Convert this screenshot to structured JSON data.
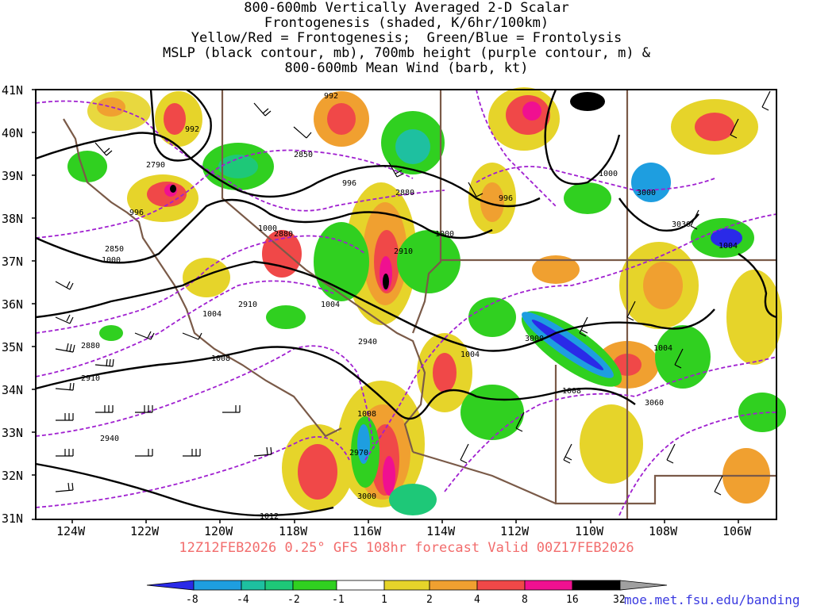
{
  "title": {
    "line1": "800-600mb Vertically Averaged 2-D Scalar",
    "line2": "Frontogenesis (shaded, K/6hr/100km)",
    "line3": "Yellow/Red = Frontogenesis;  Green/Blue = Frontolysis",
    "line4": "MSLP (black contour, mb), 700mb height (purple contour, m) &",
    "line5": "800-600mb Mean Wind (barb, kt)"
  },
  "axes": {
    "lat_labels": [
      "41N",
      "40N",
      "39N",
      "38N",
      "37N",
      "36N",
      "35N",
      "34N",
      "33N",
      "32N",
      "31N"
    ],
    "lon_labels": [
      "124W",
      "122W",
      "120W",
      "118W",
      "116W",
      "114W",
      "112W",
      "110W",
      "108W",
      "106W"
    ]
  },
  "contour_labels": {
    "mslp": [
      "992",
      "992",
      "996",
      "996",
      "996",
      "1000",
      "1000",
      "1000",
      "1000",
      "1004",
      "1004",
      "1004",
      "1004",
      "1004",
      "1008",
      "1008",
      "1008",
      "1012"
    ],
    "height": [
      "2790",
      "2850",
      "2850",
      "2880",
      "2880",
      "2880",
      "2910",
      "2910",
      "2910",
      "2940",
      "2940",
      "2970",
      "3000",
      "3000",
      "3000",
      "3030",
      "3060"
    ]
  },
  "footer": "12Z12FEB2026 0.25° GFS 108hr forecast Valid 00Z17FEB2026",
  "credit": "moe.met.fsu.edu/banding",
  "colorbar": {
    "labels": [
      "-8",
      "-4",
      "-2",
      "-1",
      "1",
      "2",
      "4",
      "8",
      "16",
      "32"
    ],
    "colors": [
      "#2a2ae8",
      "#1e9ee0",
      "#1ec0a0",
      "#1ec878",
      "#30d020",
      "#ffffff",
      "#e6d42a",
      "#f0a030",
      "#f04848",
      "#f01090",
      "#000000",
      "#a0a0a0"
    ]
  },
  "colors": {
    "mslp_contour": "#000000",
    "height_contour": "#a020d0",
    "state_border": "#7a5a48",
    "footer_text": "#f26c6c",
    "credit_text": "#3a3ae0"
  }
}
